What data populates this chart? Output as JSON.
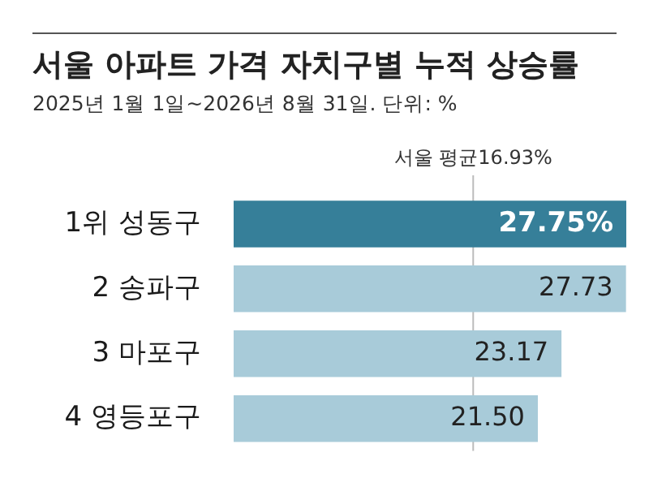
{
  "chart_data": {
    "type": "bar",
    "orientation": "horizontal",
    "title": "서울 아파트 가격 자치구별 누적 상승률",
    "subtitle": "2025년 1월 1일~2026년 8월 31일. 단위: %",
    "categories": [
      "1위 성동구",
      "2 송파구",
      "3 마포구",
      "4 영등포구"
    ],
    "values": [
      27.75,
      27.73,
      23.17,
      21.5
    ],
    "value_labels": [
      "27.75%",
      "27.73",
      "23.17",
      "21.50"
    ],
    "colors": [
      "#367f99",
      "#a8cbd9",
      "#a8cbd9",
      "#a8cbd9"
    ],
    "xlim": [
      0,
      27.75
    ],
    "tick_labels": "y",
    "legend": false,
    "ref_lines": [
      {
        "axis": "x",
        "value": 16.93,
        "label": "서울 평균16.93%",
        "color": "#bbbbbb"
      }
    ]
  }
}
